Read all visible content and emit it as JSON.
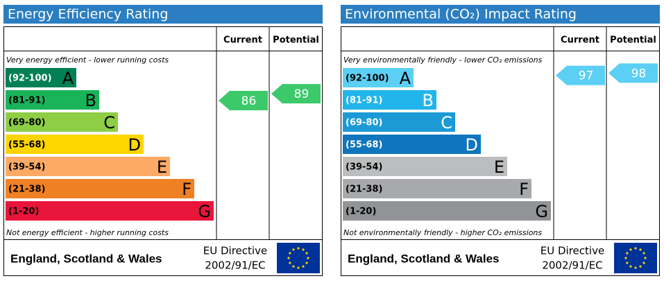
{
  "panels": [
    {
      "title": "Energy Efficiency Rating",
      "current_header": "Current",
      "potential_header": "Potential",
      "top_note": "Very energy efficient - lower running costs",
      "bottom_note": "Not energy efficient - higher running costs",
      "bands": [
        {
          "range": "(92-100)",
          "letter": "A",
          "color": "#008054"
        },
        {
          "range": "(81-91)",
          "letter": "B",
          "color": "#19b459"
        },
        {
          "range": "(69-80)",
          "letter": "C",
          "color": "#8dce46"
        },
        {
          "range": "(55-68)",
          "letter": "D",
          "color": "#ffd500"
        },
        {
          "range": "(39-54)",
          "letter": "E",
          "color": "#fcaa65"
        },
        {
          "range": "(21-38)",
          "letter": "F",
          "color": "#ef8023"
        },
        {
          "range": "(1-20)",
          "letter": "G",
          "color": "#e9153b"
        }
      ],
      "current": 86,
      "current_color": "#3cc96a",
      "potential": 89,
      "potential_color": "#3cc96a",
      "region": "England, Scotland & Wales",
      "directive": [
        "EU Directive",
        "2002/91/EC"
      ]
    },
    {
      "title": "Environmental (CO₂) Impact Rating",
      "current_header": "Current",
      "potential_header": "Potential",
      "top_note": "Very environmentally friendly - lower CO₂ emissions",
      "bottom_note": "Not environmentally friendly - higher CO₂ emissions",
      "bands": [
        {
          "range": "(92-100)",
          "letter": "A",
          "color": "#5ccff5"
        },
        {
          "range": "(81-91)",
          "letter": "B",
          "color": "#22b5eb"
        },
        {
          "range": "(69-80)",
          "letter": "C",
          "color": "#1c9ad6"
        },
        {
          "range": "(55-68)",
          "letter": "D",
          "color": "#0f75bc"
        },
        {
          "range": "(39-54)",
          "letter": "E",
          "color": "#bbbdbf"
        },
        {
          "range": "(21-38)",
          "letter": "F",
          "color": "#a7a9ac"
        },
        {
          "range": "(1-20)",
          "letter": "G",
          "color": "#919396"
        }
      ],
      "current": 97,
      "current_color": "#5ccff5",
      "potential": 98,
      "potential_color": "#5ccff5",
      "region": "England, Scotland & Wales",
      "directive": [
        "EU Directive",
        "2002/91/EC"
      ]
    }
  ]
}
